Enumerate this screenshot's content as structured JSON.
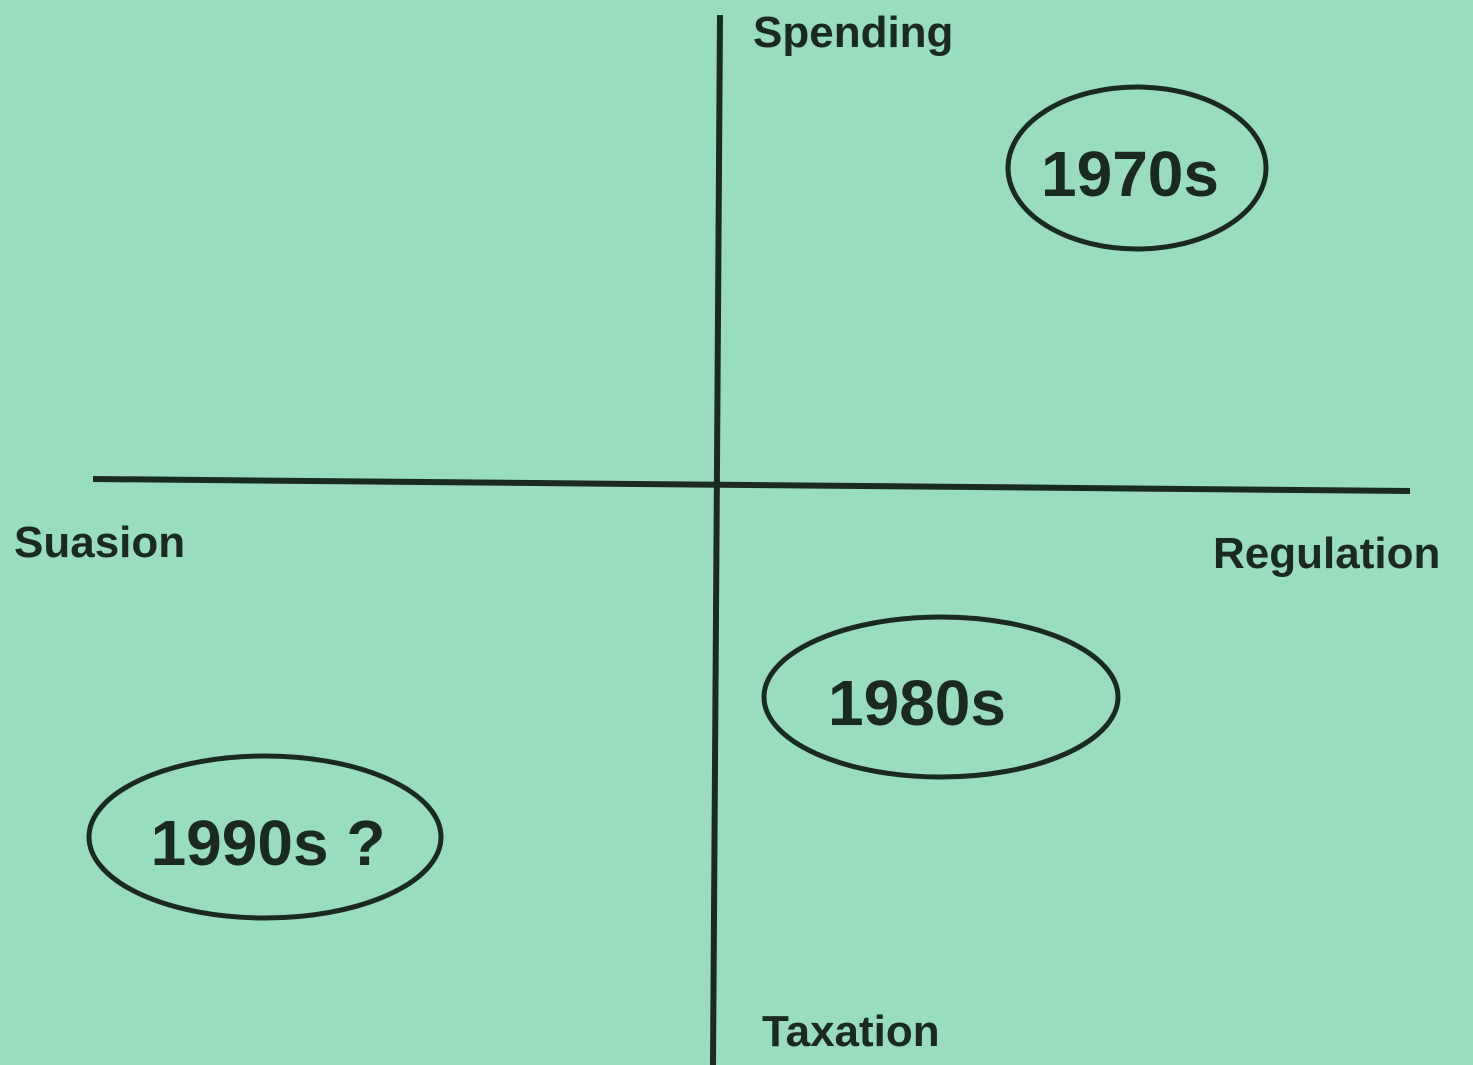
{
  "axes": {
    "top": "Spending",
    "bottom": "Taxation",
    "left": "Suasion",
    "right": "Regulation"
  },
  "nodes": [
    {
      "label": "1970s"
    },
    {
      "label": "1980s"
    },
    {
      "label": "1990s ?"
    }
  ]
}
